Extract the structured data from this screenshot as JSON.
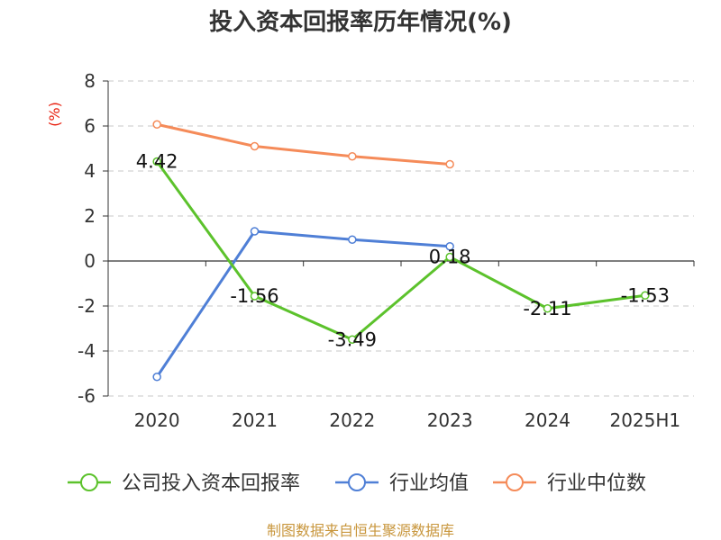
{
  "chart_data": {
    "type": "line",
    "title": "投入资本回报率历年情况(%)",
    "ylabel": "(%)",
    "categories": [
      "2020",
      "2021",
      "2022",
      "2023",
      "2024",
      "2025H1"
    ],
    "ylim": [
      -6,
      8
    ],
    "yticks": [
      8,
      6,
      4,
      2,
      0,
      -2,
      -4,
      -6
    ],
    "grid": true,
    "legend_position": "bottom",
    "series": [
      {
        "name": "公司投入资本回报率",
        "color": "#5cc22c",
        "values": [
          4.42,
          -1.56,
          -3.49,
          0.18,
          -2.11,
          -1.53
        ],
        "labels": [
          "4.42",
          "-1.56",
          "-3.49",
          "0.18",
          "-2.11",
          "-1.53"
        ]
      },
      {
        "name": "行业均值",
        "color": "#4f7fd6",
        "values": [
          -5.15,
          1.32,
          0.95,
          0.65,
          null,
          null
        ]
      },
      {
        "name": "行业中位数",
        "color": "#f58b59",
        "values": [
          6.07,
          5.1,
          4.65,
          4.3,
          null,
          null
        ]
      }
    ]
  },
  "source": "制图数据来自恒生聚源数据库"
}
